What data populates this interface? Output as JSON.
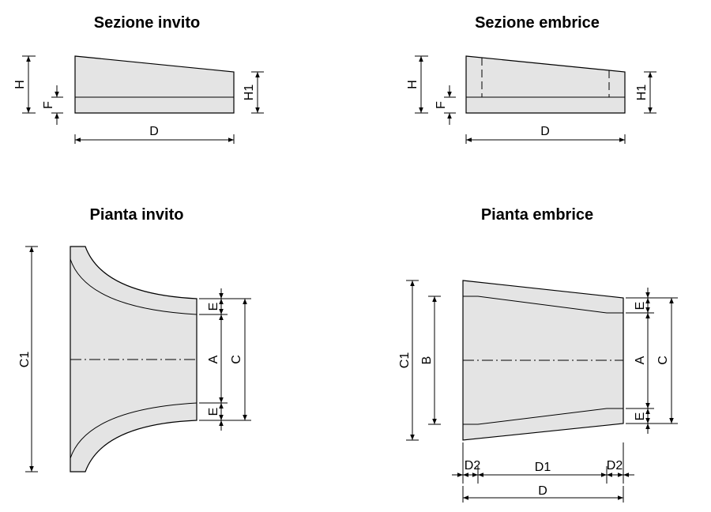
{
  "titles": {
    "sezione_invito": "Sezione invito",
    "sezione_embrice": "Sezione embrice",
    "pianta_invito": "Pianta invito",
    "pianta_embrice": "Pianta embrice"
  },
  "labels": {
    "H": "H",
    "F": "F",
    "H1": "H1",
    "D": "D",
    "C1": "C1",
    "E": "E",
    "A": "A",
    "C": "C",
    "B": "B",
    "D1": "D1",
    "D2": "D2"
  }
}
